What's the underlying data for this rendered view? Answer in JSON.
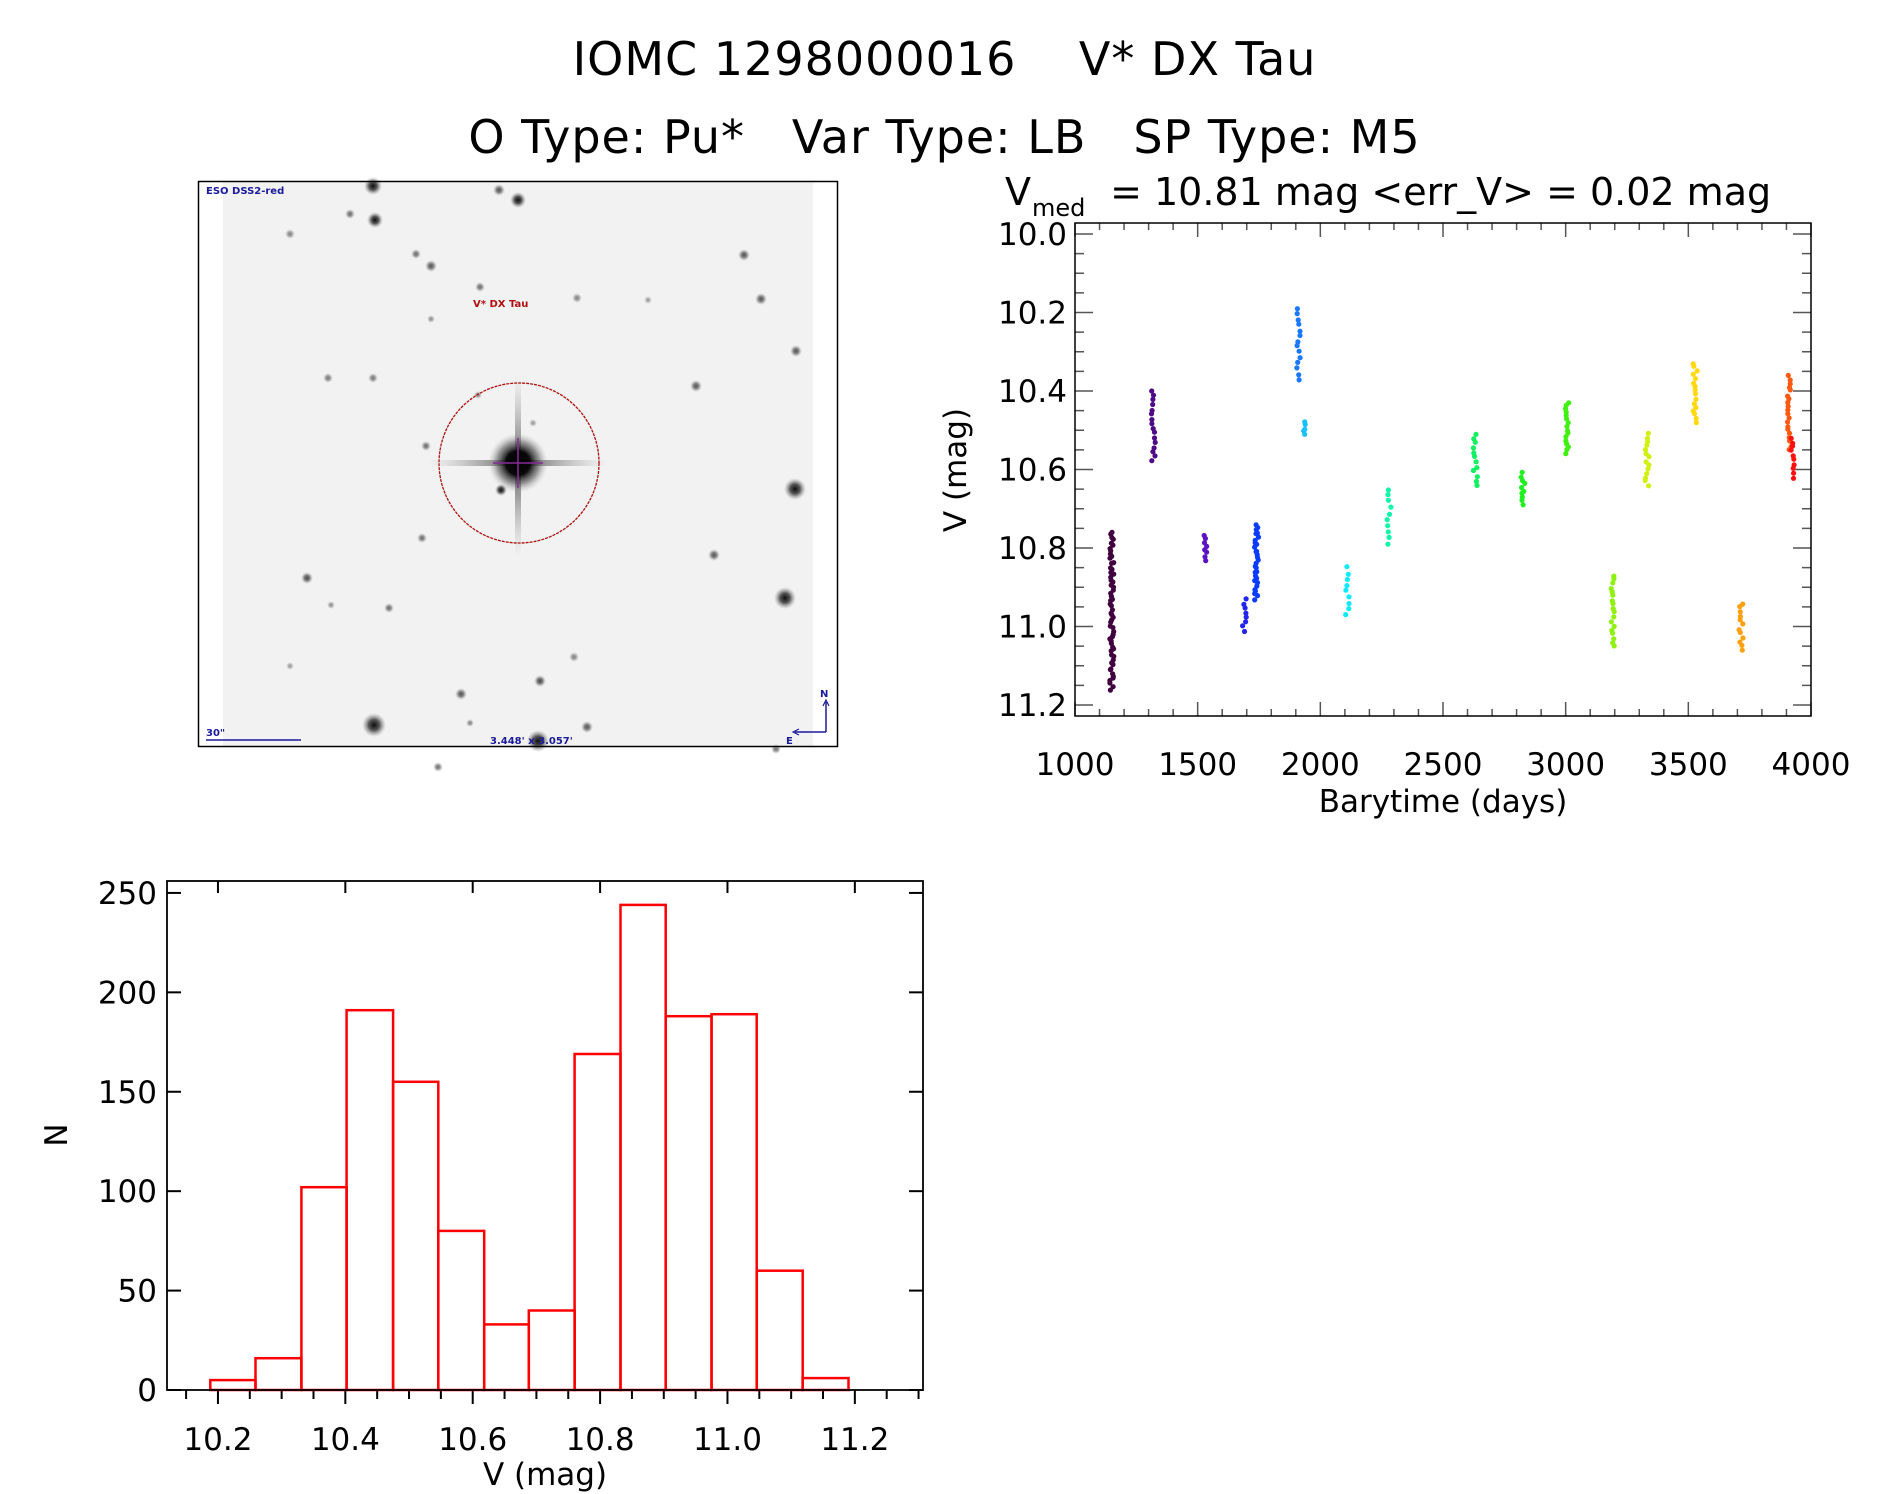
{
  "header": {
    "title_line1": "IOMC 1298000016    V* DX Tau",
    "title_line2": "O Type: Pu*   Var Type: LB   SP Type: M5"
  },
  "finder_image": {
    "survey_label": "ESO DSS2-red",
    "target_label": "V* DX Tau",
    "scale_label": "30\"",
    "size_label": "3.448' x 3.057'",
    "north_label": "N",
    "east_label": "E",
    "target_color": "#b01010",
    "annotation_color": "#1a1a9a"
  },
  "chart_data": [
    {
      "type": "scatter",
      "title_parts": {
        "v": "V",
        "sub": "med",
        "rest": " = 10.81 mag <err_V> = 0.02 mag"
      },
      "xlabel": "Barytime (days)",
      "ylabel": "V (mag)",
      "xlim": [
        1000,
        4000
      ],
      "ylim": [
        9.972,
        11.228
      ],
      "y_inverted": true,
      "x_ticks": [
        "1000",
        "1500",
        "2000",
        "2500",
        "3000",
        "3500",
        "4000"
      ],
      "y_ticks": [
        "10.0",
        "10.2",
        "10.4",
        "10.6",
        "10.8",
        "11.0",
        "11.2"
      ],
      "grid": false,
      "series": [
        {
          "x": 1150,
          "vmin": 10.76,
          "vmax": 11.16,
          "n": 60,
          "color": "#40003f"
        },
        {
          "x": 1320,
          "vmin": 10.4,
          "vmax": 10.58,
          "n": 16,
          "color": "#4e0a86"
        },
        {
          "x": 1530,
          "vmin": 10.77,
          "vmax": 10.83,
          "n": 8,
          "color": "#5a12c2"
        },
        {
          "x": 1690,
          "vmin": 10.93,
          "vmax": 11.01,
          "n": 8,
          "color": "#2424f0"
        },
        {
          "x": 1740,
          "vmin": 10.74,
          "vmax": 10.93,
          "n": 30,
          "color": "#0a3cff"
        },
        {
          "x": 1910,
          "vmin": 10.19,
          "vmax": 10.37,
          "n": 14,
          "color": "#1a78ff"
        },
        {
          "x": 1935,
          "vmin": 10.48,
          "vmax": 10.51,
          "n": 5,
          "color": "#18c0ff"
        },
        {
          "x": 2110,
          "vmin": 10.85,
          "vmax": 10.97,
          "n": 9,
          "color": "#10eaff"
        },
        {
          "x": 2280,
          "vmin": 10.65,
          "vmax": 10.79,
          "n": 10,
          "color": "#10f5a8"
        },
        {
          "x": 2632,
          "vmin": 10.51,
          "vmax": 10.64,
          "n": 12,
          "color": "#10f060"
        },
        {
          "x": 2826,
          "vmin": 10.61,
          "vmax": 10.69,
          "n": 10,
          "color": "#20f020"
        },
        {
          "x": 3005,
          "vmin": 10.43,
          "vmax": 10.56,
          "n": 16,
          "color": "#40f010"
        },
        {
          "x": 3193,
          "vmin": 10.87,
          "vmax": 11.05,
          "n": 18,
          "color": "#90f010"
        },
        {
          "x": 3332,
          "vmin": 10.51,
          "vmax": 10.64,
          "n": 14,
          "color": "#d0f010"
        },
        {
          "x": 3528,
          "vmin": 10.33,
          "vmax": 10.48,
          "n": 16,
          "color": "#ffd810"
        },
        {
          "x": 3715,
          "vmin": 10.94,
          "vmax": 11.06,
          "n": 12,
          "color": "#ffa010"
        },
        {
          "x": 3911,
          "vmin": 10.36,
          "vmax": 10.55,
          "n": 20,
          "color": "#ff5a10"
        },
        {
          "x": 3925,
          "vmin": 10.52,
          "vmax": 10.62,
          "n": 10,
          "color": "#ff1010"
        }
      ]
    },
    {
      "type": "bar",
      "subtype": "histogram",
      "xlabel": "V (mag)",
      "ylabel": "N",
      "xlim": [
        10.12,
        11.307
      ],
      "ylim": [
        0,
        256
      ],
      "x_ticks": [
        "10.2",
        "10.4",
        "10.6",
        "10.8",
        "11.0",
        "11.2"
      ],
      "y_ticks": [
        "0",
        "50",
        "100",
        "150",
        "200",
        "250"
      ],
      "bin_edges": [
        10.188,
        10.259,
        10.331,
        10.402,
        10.475,
        10.546,
        10.618,
        10.688,
        10.76,
        10.832,
        10.903,
        10.975,
        11.046,
        11.118,
        11.19
      ],
      "values": [
        5,
        16,
        102,
        191,
        155,
        80,
        33,
        40,
        169,
        244,
        188,
        189,
        60,
        6
      ],
      "color": "#ff0000"
    }
  ]
}
